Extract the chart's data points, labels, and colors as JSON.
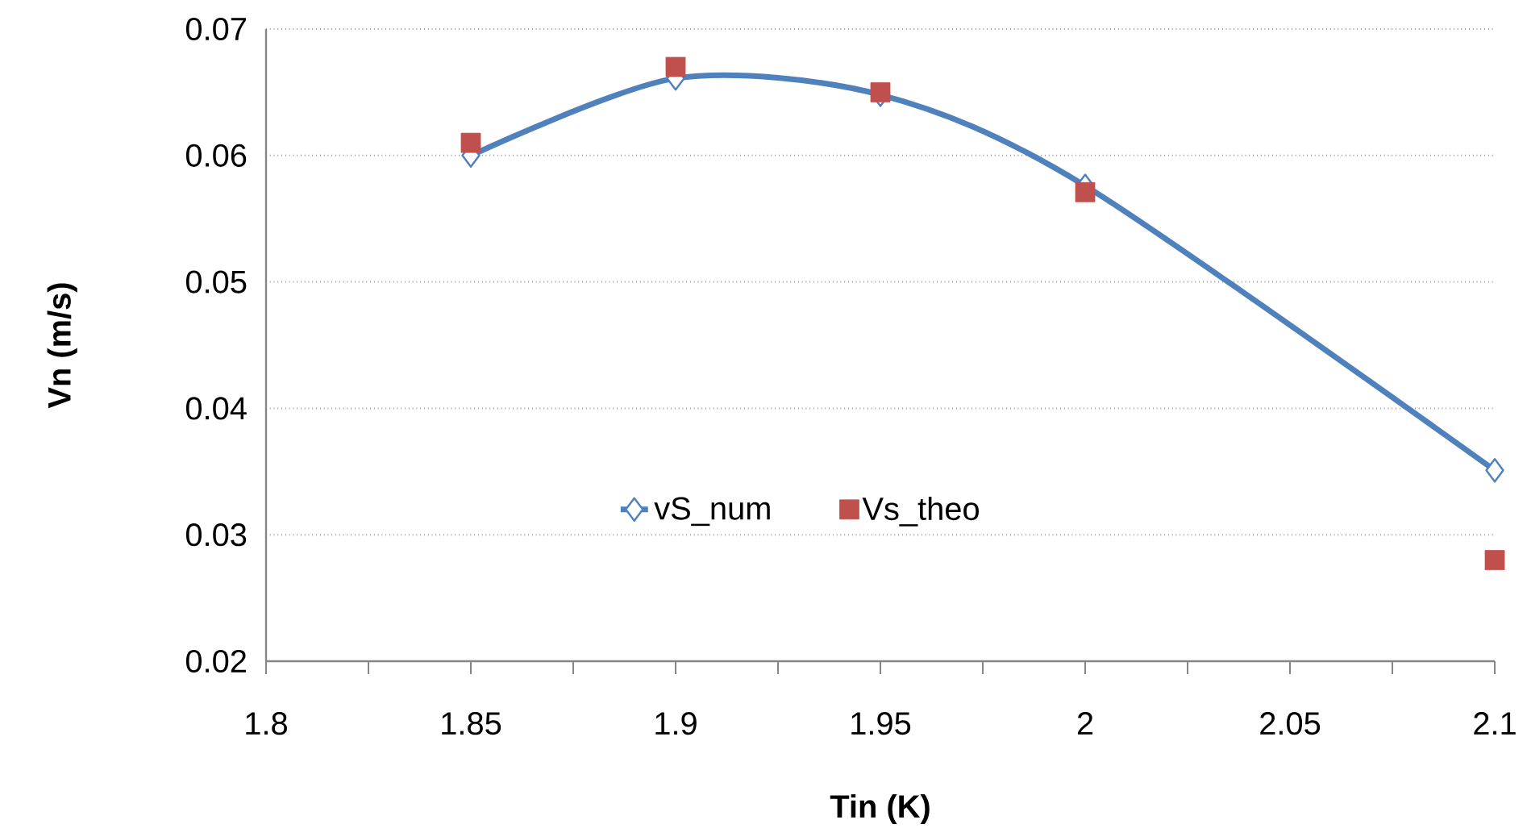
{
  "chart_data": {
    "type": "line",
    "xlabel": "Tin (K)",
    "ylabel": "Vn (m/s)",
    "xlim": [
      1.8,
      2.1
    ],
    "xticks": [
      1.8,
      1.85,
      1.9,
      1.95,
      2,
      2.05,
      2.1
    ],
    "ylim": [
      0.02,
      0.07
    ],
    "yticks": [
      0.02,
      0.03,
      0.04,
      0.05,
      0.06,
      0.07
    ],
    "grid": "y",
    "legend": "bottom",
    "series": [
      {
        "name": "vS_num",
        "color": "#4f81bd",
        "marker": "diamond",
        "line_style": "solid",
        "x": [
          1.85,
          1.9,
          1.95,
          2,
          2.1
        ],
        "values": [
          0.06,
          0.0661,
          0.0648,
          0.0576,
          0.0351
        ]
      },
      {
        "name": "Vs_theo",
        "type": "scatter",
        "color": "#c0504d",
        "marker": "square",
        "x": [
          1.85,
          1.9,
          1.95,
          2,
          2.1
        ],
        "values": [
          0.061,
          0.067,
          0.065,
          0.0571,
          0.028
        ]
      }
    ]
  }
}
